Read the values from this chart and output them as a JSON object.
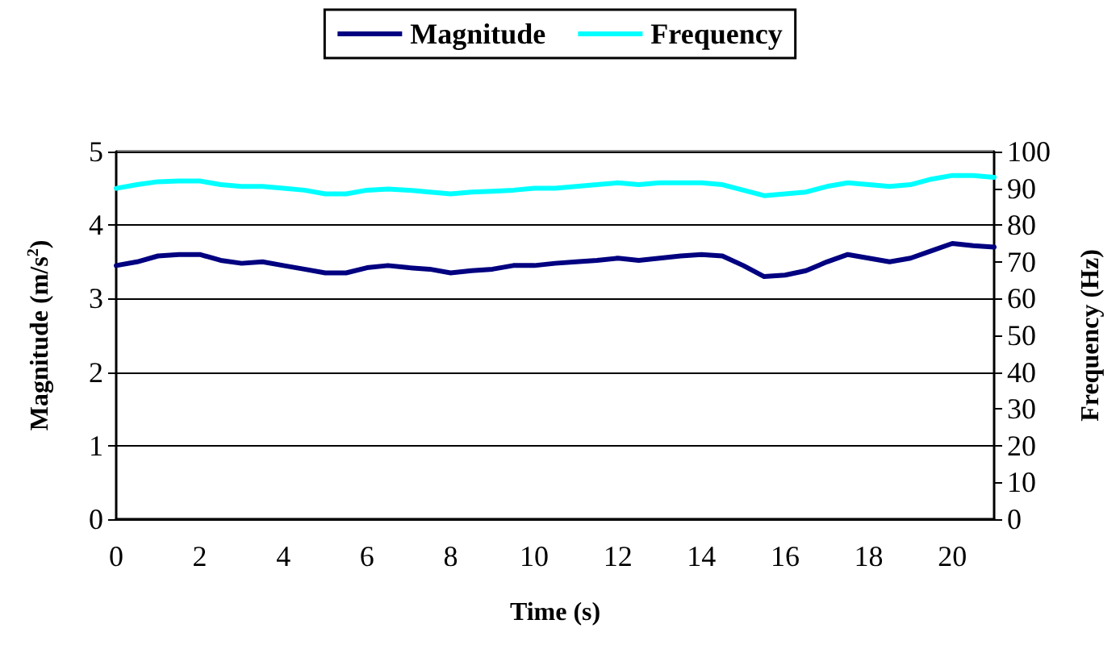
{
  "chart_data": {
    "type": "line",
    "xlabel": "Time (s)",
    "ylabel": "Magnitude (m/s$^{2}$)",
    "y2label": "Frequency (Hz)",
    "legend": "top",
    "grid": "y",
    "marker": "none",
    "line_style": "solid",
    "xlim": [
      0,
      21
    ],
    "xticks": [
      0,
      2,
      4,
      6,
      8,
      10,
      12,
      14,
      16,
      18,
      20
    ],
    "ylim": [
      0,
      5
    ],
    "yticks": [
      0,
      1,
      2,
      3,
      4,
      5
    ],
    "y2lim": [
      0,
      100
    ],
    "y2ticks": [
      0,
      10,
      20,
      30,
      40,
      50,
      60,
      70,
      80,
      90,
      100
    ],
    "x": [
      0,
      0.5,
      1,
      1.5,
      2,
      2.5,
      3,
      3.5,
      4,
      4.5,
      5,
      5.5,
      6,
      6.5,
      7,
      7.5,
      8,
      8.5,
      9,
      9.5,
      10,
      10.5,
      11,
      11.5,
      12,
      12.5,
      13,
      13.5,
      14,
      14.5,
      15,
      15.5,
      16,
      16.5,
      17,
      17.5,
      18,
      18.5,
      19,
      19.5,
      20,
      20.5,
      21
    ],
    "series": [
      {
        "name": "Magnitude",
        "color": "#000080",
        "values": [
          3.45,
          3.5,
          3.58,
          3.6,
          3.6,
          3.52,
          3.48,
          3.5,
          3.45,
          3.4,
          3.35,
          3.35,
          3.42,
          3.45,
          3.42,
          3.4,
          3.35,
          3.38,
          3.4,
          3.45,
          3.45,
          3.48,
          3.5,
          3.52,
          3.55,
          3.52,
          3.55,
          3.58,
          3.6,
          3.58,
          3.45,
          3.3,
          3.32,
          3.38,
          3.5,
          3.6,
          3.55,
          3.5,
          3.55,
          3.65,
          3.75,
          3.72,
          3.7
        ]
      },
      {
        "name": "Frequency",
        "color": "#00ffff",
        "axis": "y2",
        "values": [
          90,
          91,
          91.8,
          92,
          92,
          91,
          90.5,
          90.5,
          90,
          89.5,
          88.5,
          88.5,
          89.5,
          89.8,
          89.5,
          89,
          88.5,
          89,
          89.2,
          89.5,
          90,
          90,
          90.5,
          91,
          91.5,
          91,
          91.5,
          91.5,
          91.5,
          91,
          89.5,
          88,
          88.5,
          89,
          90.5,
          91.5,
          91,
          90.5,
          91,
          92.5,
          93.5,
          93.5,
          93
        ]
      }
    ]
  }
}
